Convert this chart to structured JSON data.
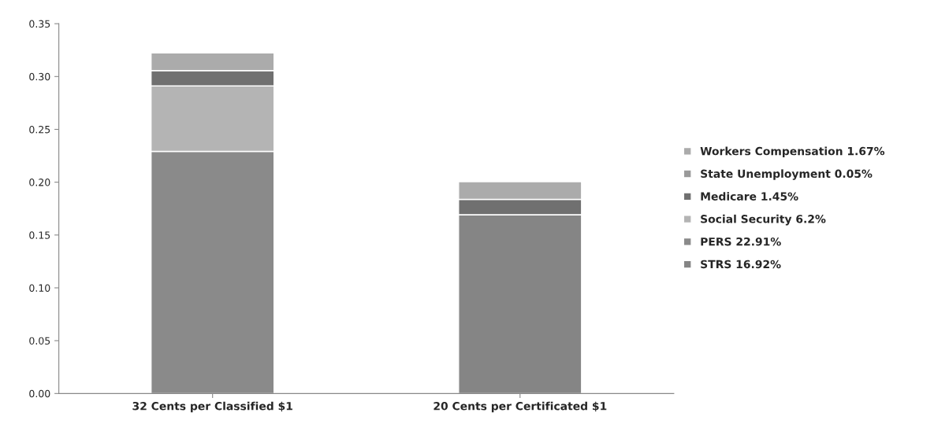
{
  "chart_data": {
    "type": "bar",
    "stacked": true,
    "categories": [
      "32 Cents per Classified $1",
      "20 Cents per Certificated $1"
    ],
    "series": [
      {
        "name": "STRS 16.92%",
        "color": "#858585",
        "values": [
          0,
          0.1692
        ]
      },
      {
        "name": "PERS 22.91%",
        "color": "#8a8a8a",
        "values": [
          0.2291,
          0
        ]
      },
      {
        "name": "Social Security 6.2%",
        "color": "#b4b4b4",
        "values": [
          0.062,
          0
        ]
      },
      {
        "name": "Medicare 1.45%",
        "color": "#707070",
        "values": [
          0.0145,
          0.0145
        ]
      },
      {
        "name": "State Unemployment 0.05%",
        "color": "#9a9a9a",
        "values": [
          null,
          null
        ]
      },
      {
        "name": "Workers Compensation 1.67%",
        "color": "#ababab",
        "values": [
          0.0167,
          0.0167
        ]
      }
    ],
    "ylim": [
      0,
      0.35
    ],
    "yticks": [
      {
        "value": 0,
        "label": "0.00"
      },
      {
        "value": 0.05,
        "label": "0.05"
      },
      {
        "value": 0.1,
        "label": "0.10"
      },
      {
        "value": 0.15,
        "label": "0.15"
      },
      {
        "value": 0.2,
        "label": "0.20"
      },
      {
        "value": 0.25,
        "label": "0.25"
      },
      {
        "value": 0.3,
        "label": "0.30"
      },
      {
        "value": 0.35,
        "label": "0.35"
      }
    ],
    "grid": false,
    "legend": "right"
  }
}
